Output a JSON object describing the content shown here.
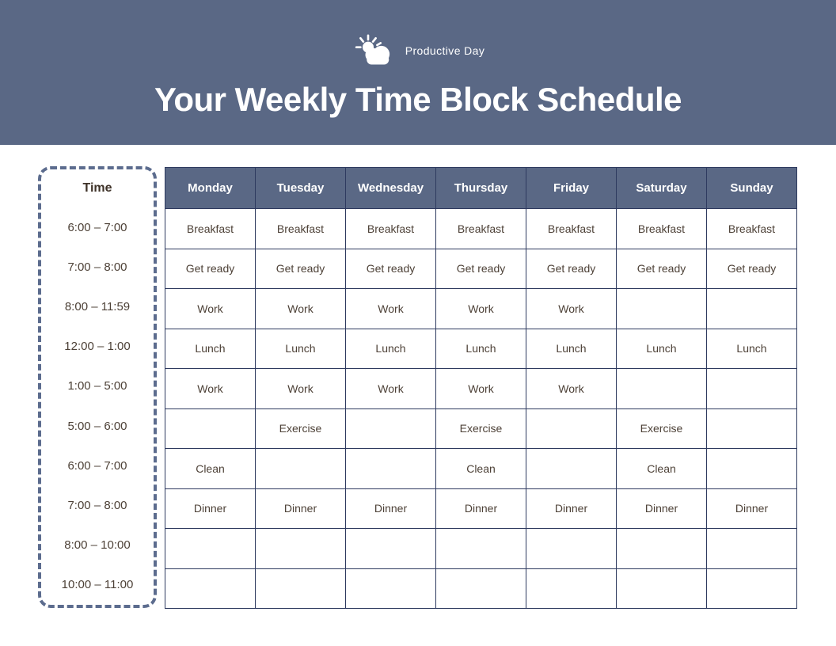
{
  "header": {
    "logo": {
      "icon": "sun-behind-cloud-icon",
      "text": "Productive Day"
    },
    "title": "Your Weekly Time Block Schedule"
  },
  "colors": {
    "banner_bg": "#5A6885",
    "grid_border": "#2E3A5F",
    "dashed_border": "#5C6C8E",
    "cell_text": "#4D4137",
    "white": "#FFFFFF"
  },
  "time_panel": {
    "header": "Time",
    "slots": [
      "6:00 – 7:00",
      "7:00 – 8:00",
      "8:00 – 11:59",
      "12:00 – 1:00",
      "1:00 – 5:00",
      "5:00 – 6:00",
      "6:00 – 7:00",
      "7:00 – 8:00",
      "8:00 – 10:00",
      "10:00 – 11:00"
    ]
  },
  "schedule": {
    "days": [
      "Monday",
      "Tuesday",
      "Wednesday",
      "Thursday",
      "Friday",
      "Saturday",
      "Sunday"
    ],
    "rows": [
      {
        "time": "6:00 – 7:00",
        "cells": [
          "Breakfast",
          "Breakfast",
          "Breakfast",
          "Breakfast",
          "Breakfast",
          "Breakfast",
          "Breakfast"
        ]
      },
      {
        "time": "7:00 – 8:00",
        "cells": [
          "Get ready",
          "Get ready",
          "Get ready",
          "Get ready",
          "Get ready",
          "Get ready",
          "Get ready"
        ]
      },
      {
        "time": "8:00 – 11:59",
        "cells": [
          "Work",
          "Work",
          "Work",
          "Work",
          "Work",
          "",
          ""
        ]
      },
      {
        "time": "12:00 – 1:00",
        "cells": [
          "Lunch",
          "Lunch",
          "Lunch",
          "Lunch",
          "Lunch",
          "Lunch",
          "Lunch"
        ]
      },
      {
        "time": "1:00 – 5:00",
        "cells": [
          "Work",
          "Work",
          "Work",
          "Work",
          "Work",
          "",
          ""
        ]
      },
      {
        "time": "5:00 – 6:00",
        "cells": [
          "",
          "Exercise",
          "",
          "Exercise",
          "",
          "Exercise",
          ""
        ]
      },
      {
        "time": "6:00 – 7:00",
        "cells": [
          "Clean",
          "",
          "",
          "Clean",
          "",
          "Clean",
          ""
        ]
      },
      {
        "time": "7:00 – 8:00",
        "cells": [
          "Dinner",
          "Dinner",
          "Dinner",
          "Dinner",
          "Dinner",
          "Dinner",
          "Dinner"
        ]
      },
      {
        "time": "8:00 – 10:00",
        "cells": [
          "",
          "",
          "",
          "",
          "",
          "",
          ""
        ]
      },
      {
        "time": "10:00 – 11:00",
        "cells": [
          "",
          "",
          "",
          "",
          "",
          "",
          ""
        ]
      }
    ]
  }
}
